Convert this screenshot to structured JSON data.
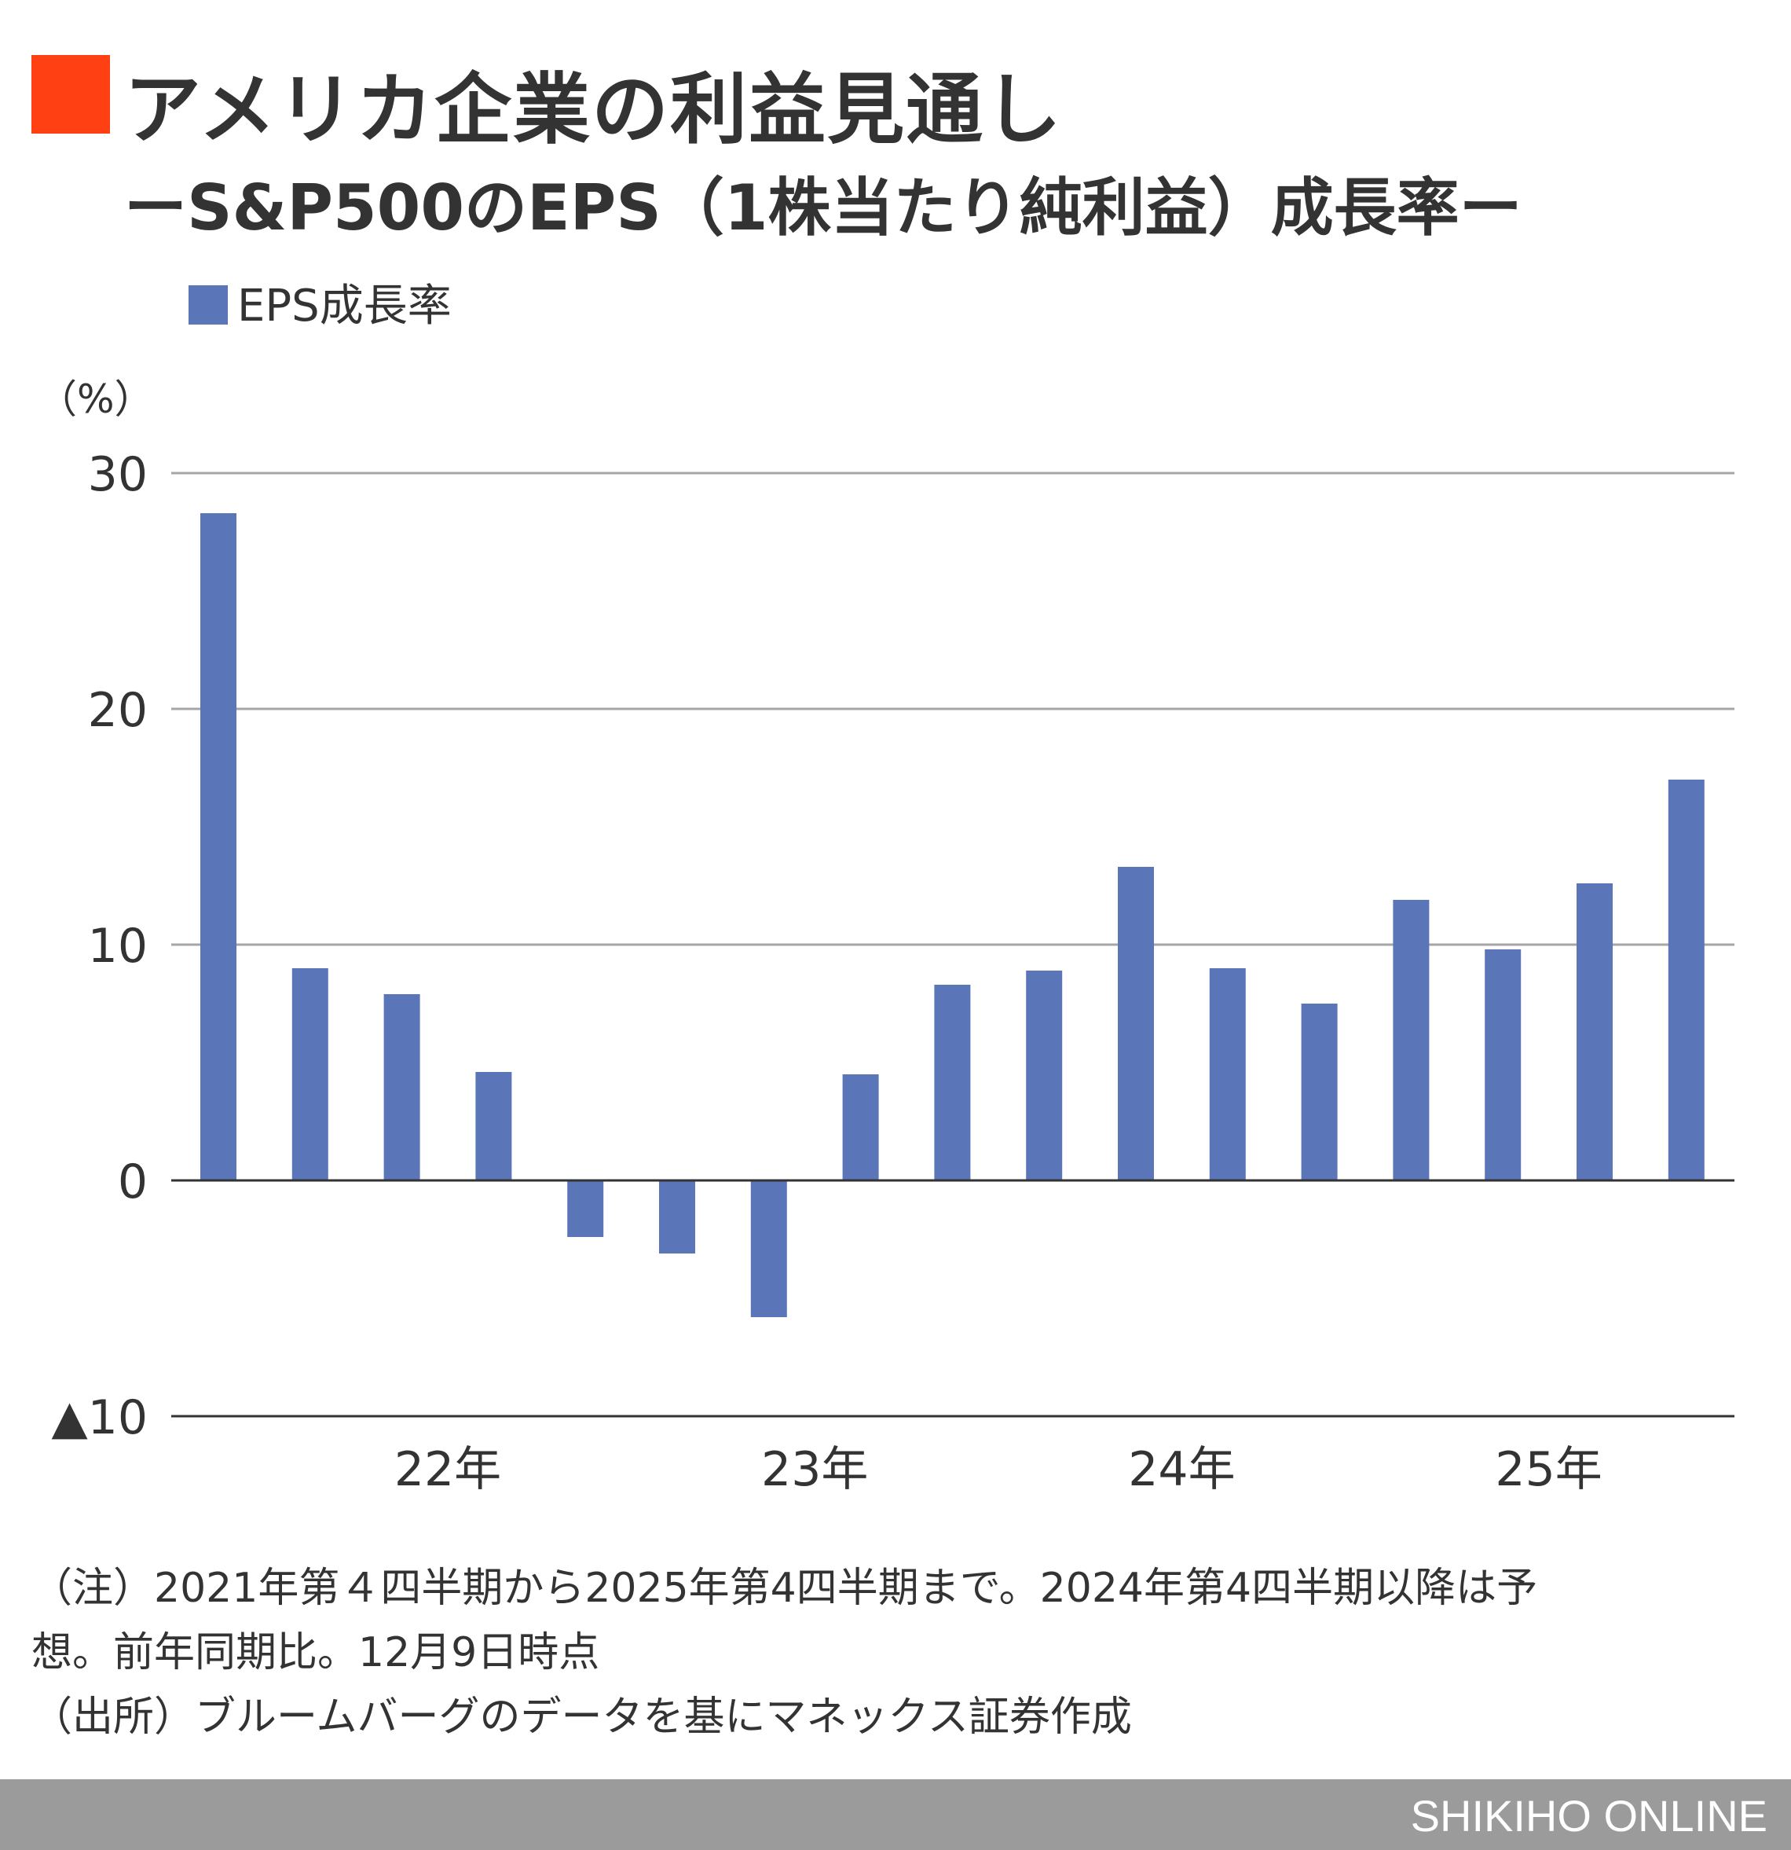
{
  "header": {
    "title": "アメリカ企業の利益見通し",
    "subtitle": "ーS&P500のEPS（1株当たり純利益）成長率ー"
  },
  "colors": {
    "accent": "#ff4013",
    "bar": "#5b76b8",
    "grid": "#a6a6a6",
    "axis": "#333333",
    "footer": "#9b9b9b"
  },
  "chart_data": {
    "type": "bar",
    "title": "",
    "ylabel": "（%）",
    "xlabel": "",
    "legend": {
      "position": "top-left",
      "entries": [
        "EPS成長率"
      ]
    },
    "ylim": [
      -10,
      30
    ],
    "yticks": [
      30,
      20,
      10,
      0,
      -10
    ],
    "ytick_labels": [
      "30",
      "20",
      "10",
      "0",
      "▲10"
    ],
    "grid": true,
    "x_group_labels": [
      {
        "label": "22年",
        "first_index": 1,
        "last_index": 4
      },
      {
        "label": "23年",
        "first_index": 5,
        "last_index": 8
      },
      {
        "label": "24年",
        "first_index": 9,
        "last_index": 12
      },
      {
        "label": "25年",
        "first_index": 13,
        "last_index": 16
      }
    ],
    "categories": [
      "2021 Q4",
      "2022 Q1",
      "2022 Q2",
      "2022 Q3",
      "2022 Q4",
      "2023 Q1",
      "2023 Q2",
      "2023 Q3",
      "2023 Q4",
      "2024 Q1",
      "2024 Q2",
      "2024 Q3",
      "2024 Q4",
      "2025 Q1",
      "2025 Q2",
      "2025 Q3",
      "2025 Q4"
    ],
    "series": [
      {
        "name": "EPS成長率",
        "values": [
          28.3,
          9.0,
          7.9,
          4.6,
          -2.4,
          -3.1,
          -5.8,
          4.5,
          8.3,
          8.9,
          13.3,
          9.0,
          7.5,
          11.9,
          9.8,
          12.6,
          17.0
        ]
      }
    ]
  },
  "notes": {
    "line1": "（注）2021年第４四半期から2025年第4四半期まで。2024年第4四半期以降は予",
    "line2": "想。前年同期比。12月9日時点",
    "line3": "（出所）ブルームバーグのデータを基にマネックス証券作成"
  },
  "footer": {
    "brand": "SHIKIHO ONLINE"
  }
}
